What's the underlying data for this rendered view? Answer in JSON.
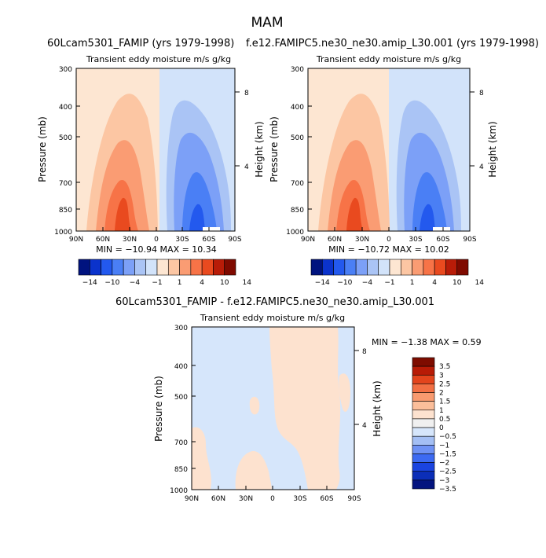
{
  "figure": {
    "season": "MAM",
    "title_left": "60Lcam5301_FAMIP (yrs 1979-1998)",
    "title_right": "f.e12.FAMIPC5.ne30_ne30.amip_L30.001 (yrs 1979-1998)",
    "title_diff": "60Lcam5301_FAMIP - f.e12.FAMIPC5.ne30_ne30.amip_L30.001"
  },
  "palettes": {
    "main": [
      "#00137f",
      "#0b33cc",
      "#2359ee",
      "#4a7ff5",
      "#7ca0f7",
      "#aac4f5",
      "#d2e3fa",
      "#fde6d2",
      "#fcc6a3",
      "#fa9c73",
      "#f77347",
      "#e94a1f",
      "#b81c08",
      "#7f0a00"
    ],
    "diff": [
      "#04147f",
      "#0b2eb8",
      "#1a44e0",
      "#3c6af2",
      "#6f92f4",
      "#a4bff4",
      "#d6e6fb",
      "#f0f0f0",
      "#fde2cf",
      "#fbbe9a",
      "#f89a6f",
      "#f26f43",
      "#e3441c",
      "#b81b06",
      "#7e0c00"
    ]
  },
  "chart_data": [
    {
      "type": "heatmap",
      "panel": "left",
      "title": "Transient eddy moisture m/s g/kg",
      "xlabel": "",
      "ylabel": "Pressure (mb)",
      "ylabel_right": "Height (km)",
      "xticks": [
        "90N",
        "60N",
        "30N",
        "0",
        "30S",
        "60S",
        "90S"
      ],
      "yticks": [
        "300",
        "400",
        "500",
        "700",
        "850",
        "1000"
      ],
      "height_ticks": [
        "8",
        "4"
      ],
      "ylim": [
        1000,
        300
      ],
      "min": -10.94,
      "max": 10.34,
      "minmax_text": "MIN = −10.94   MAX =  10.34",
      "colorbar": {
        "levels": [
          -14,
          -12,
          -10,
          -8,
          -6,
          -4,
          -2,
          0,
          1,
          2,
          4,
          6,
          8,
          10,
          12,
          14
        ],
        "labels": [
          "−14",
          "−10",
          "−4",
          "−1",
          "1",
          "4",
          "10",
          "14"
        ]
      }
    },
    {
      "type": "heatmap",
      "panel": "right",
      "title": "Transient eddy moisture m/s g/kg",
      "xlabel": "",
      "ylabel": "Pressure (mb)",
      "ylabel_right": "Height (km)",
      "xticks": [
        "90N",
        "60N",
        "30N",
        "0",
        "30S",
        "60S",
        "90S"
      ],
      "yticks": [
        "300",
        "400",
        "500",
        "700",
        "850",
        "1000"
      ],
      "height_ticks": [
        "8",
        "4"
      ],
      "ylim": [
        1000,
        300
      ],
      "min": -10.72,
      "max": 10.02,
      "minmax_text": "MIN = −10.72   MAX =  10.02",
      "colorbar": {
        "levels": [
          -14,
          -12,
          -10,
          -8,
          -6,
          -4,
          -2,
          0,
          1,
          2,
          4,
          6,
          8,
          10,
          12,
          14
        ],
        "labels": [
          "−14",
          "−10",
          "−4",
          "−1",
          "1",
          "4",
          "10",
          "14"
        ]
      }
    },
    {
      "type": "heatmap",
      "panel": "difference",
      "title": "Transient eddy moisture m/s g/kg",
      "xlabel": "",
      "ylabel": "Pressure (mb)",
      "ylabel_right": "Height (km)",
      "xticks": [
        "90N",
        "60N",
        "30N",
        "0",
        "30S",
        "60S",
        "90S"
      ],
      "yticks": [
        "300",
        "400",
        "500",
        "700",
        "850",
        "1000"
      ],
      "height_ticks": [
        "8",
        "4"
      ],
      "ylim": [
        1000,
        300
      ],
      "min": -1.38,
      "max": 0.59,
      "minmax_text": "MIN =   −1.38   MAX =    0.59",
      "colorbar": {
        "levels": [
          3.5,
          3,
          2.5,
          2,
          1.5,
          1,
          0.5,
          0,
          -0.5,
          -1,
          -1.5,
          -2,
          -2.5,
          -3,
          -3.5
        ],
        "labels": [
          "3.5",
          "3",
          "2.5",
          "2",
          "1.5",
          "1",
          "0.5",
          "0",
          "−0.5",
          "−1",
          "−1.5",
          "−2",
          "−2.5",
          "−3",
          "−3.5"
        ]
      }
    }
  ]
}
